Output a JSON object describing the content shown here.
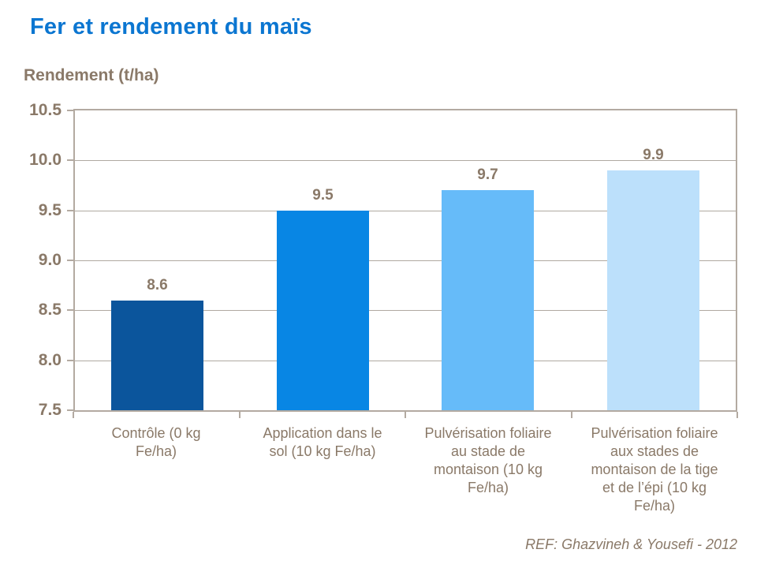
{
  "page": {
    "title": "Fer et rendement du maïs",
    "y_axis_title": "Rendement (t/ha)",
    "reference": "REF: Ghazvineh & Yousefi - 2012"
  },
  "colors": {
    "title": "#0b76d1",
    "axis_text": "#8a7968",
    "plot_border": "#b3aaa1",
    "gridline": "#b0a9a1",
    "bars": [
      "#0b559c",
      "#0886e4",
      "#66bbf9",
      "#bce0fb"
    ]
  },
  "chart_data": {
    "type": "bar",
    "title": "Fer et rendement du maïs",
    "ylabel": "Rendement (t/ha)",
    "xlabel": "",
    "categories": [
      "Contrôle (0 kg Fe/ha)",
      "Application dans le sol (10 kg Fe/ha)",
      "Pulvérisation foliaire au stade de montaison (10 kg Fe/ha)",
      "Pulvérisation foliaire aux stades de montaison de la tige et de l’épi (10 kg Fe/ha)"
    ],
    "category_label_lines": [
      "Contrôle (0 kg\nFe/ha)",
      "Application dans le\nsol (10 kg Fe/ha)",
      "Pulvérisation foliaire\nau stade de\nmontaison (10 kg\nFe/ha)",
      "Pulvérisation foliaire\naux stades de\nmontaison de la tige\net de l’épi (10 kg\nFe/ha)"
    ],
    "values": [
      8.6,
      9.5,
      9.7,
      9.9
    ],
    "value_labels": [
      "8.6",
      "9.5",
      "9.7",
      "9.9"
    ],
    "ylim": [
      7.5,
      10.5
    ],
    "yticks": [
      10.5,
      10.0,
      9.5,
      9.0,
      8.5,
      8.0,
      7.5
    ],
    "ytick_labels": [
      "10.5",
      "10.0",
      "9.5",
      "9.0",
      "8.5",
      "8.0",
      "7.5"
    ],
    "grid": "horizontal",
    "legend": "none",
    "annotation": "REF: Ghazvineh & Yousefi - 2012"
  }
}
